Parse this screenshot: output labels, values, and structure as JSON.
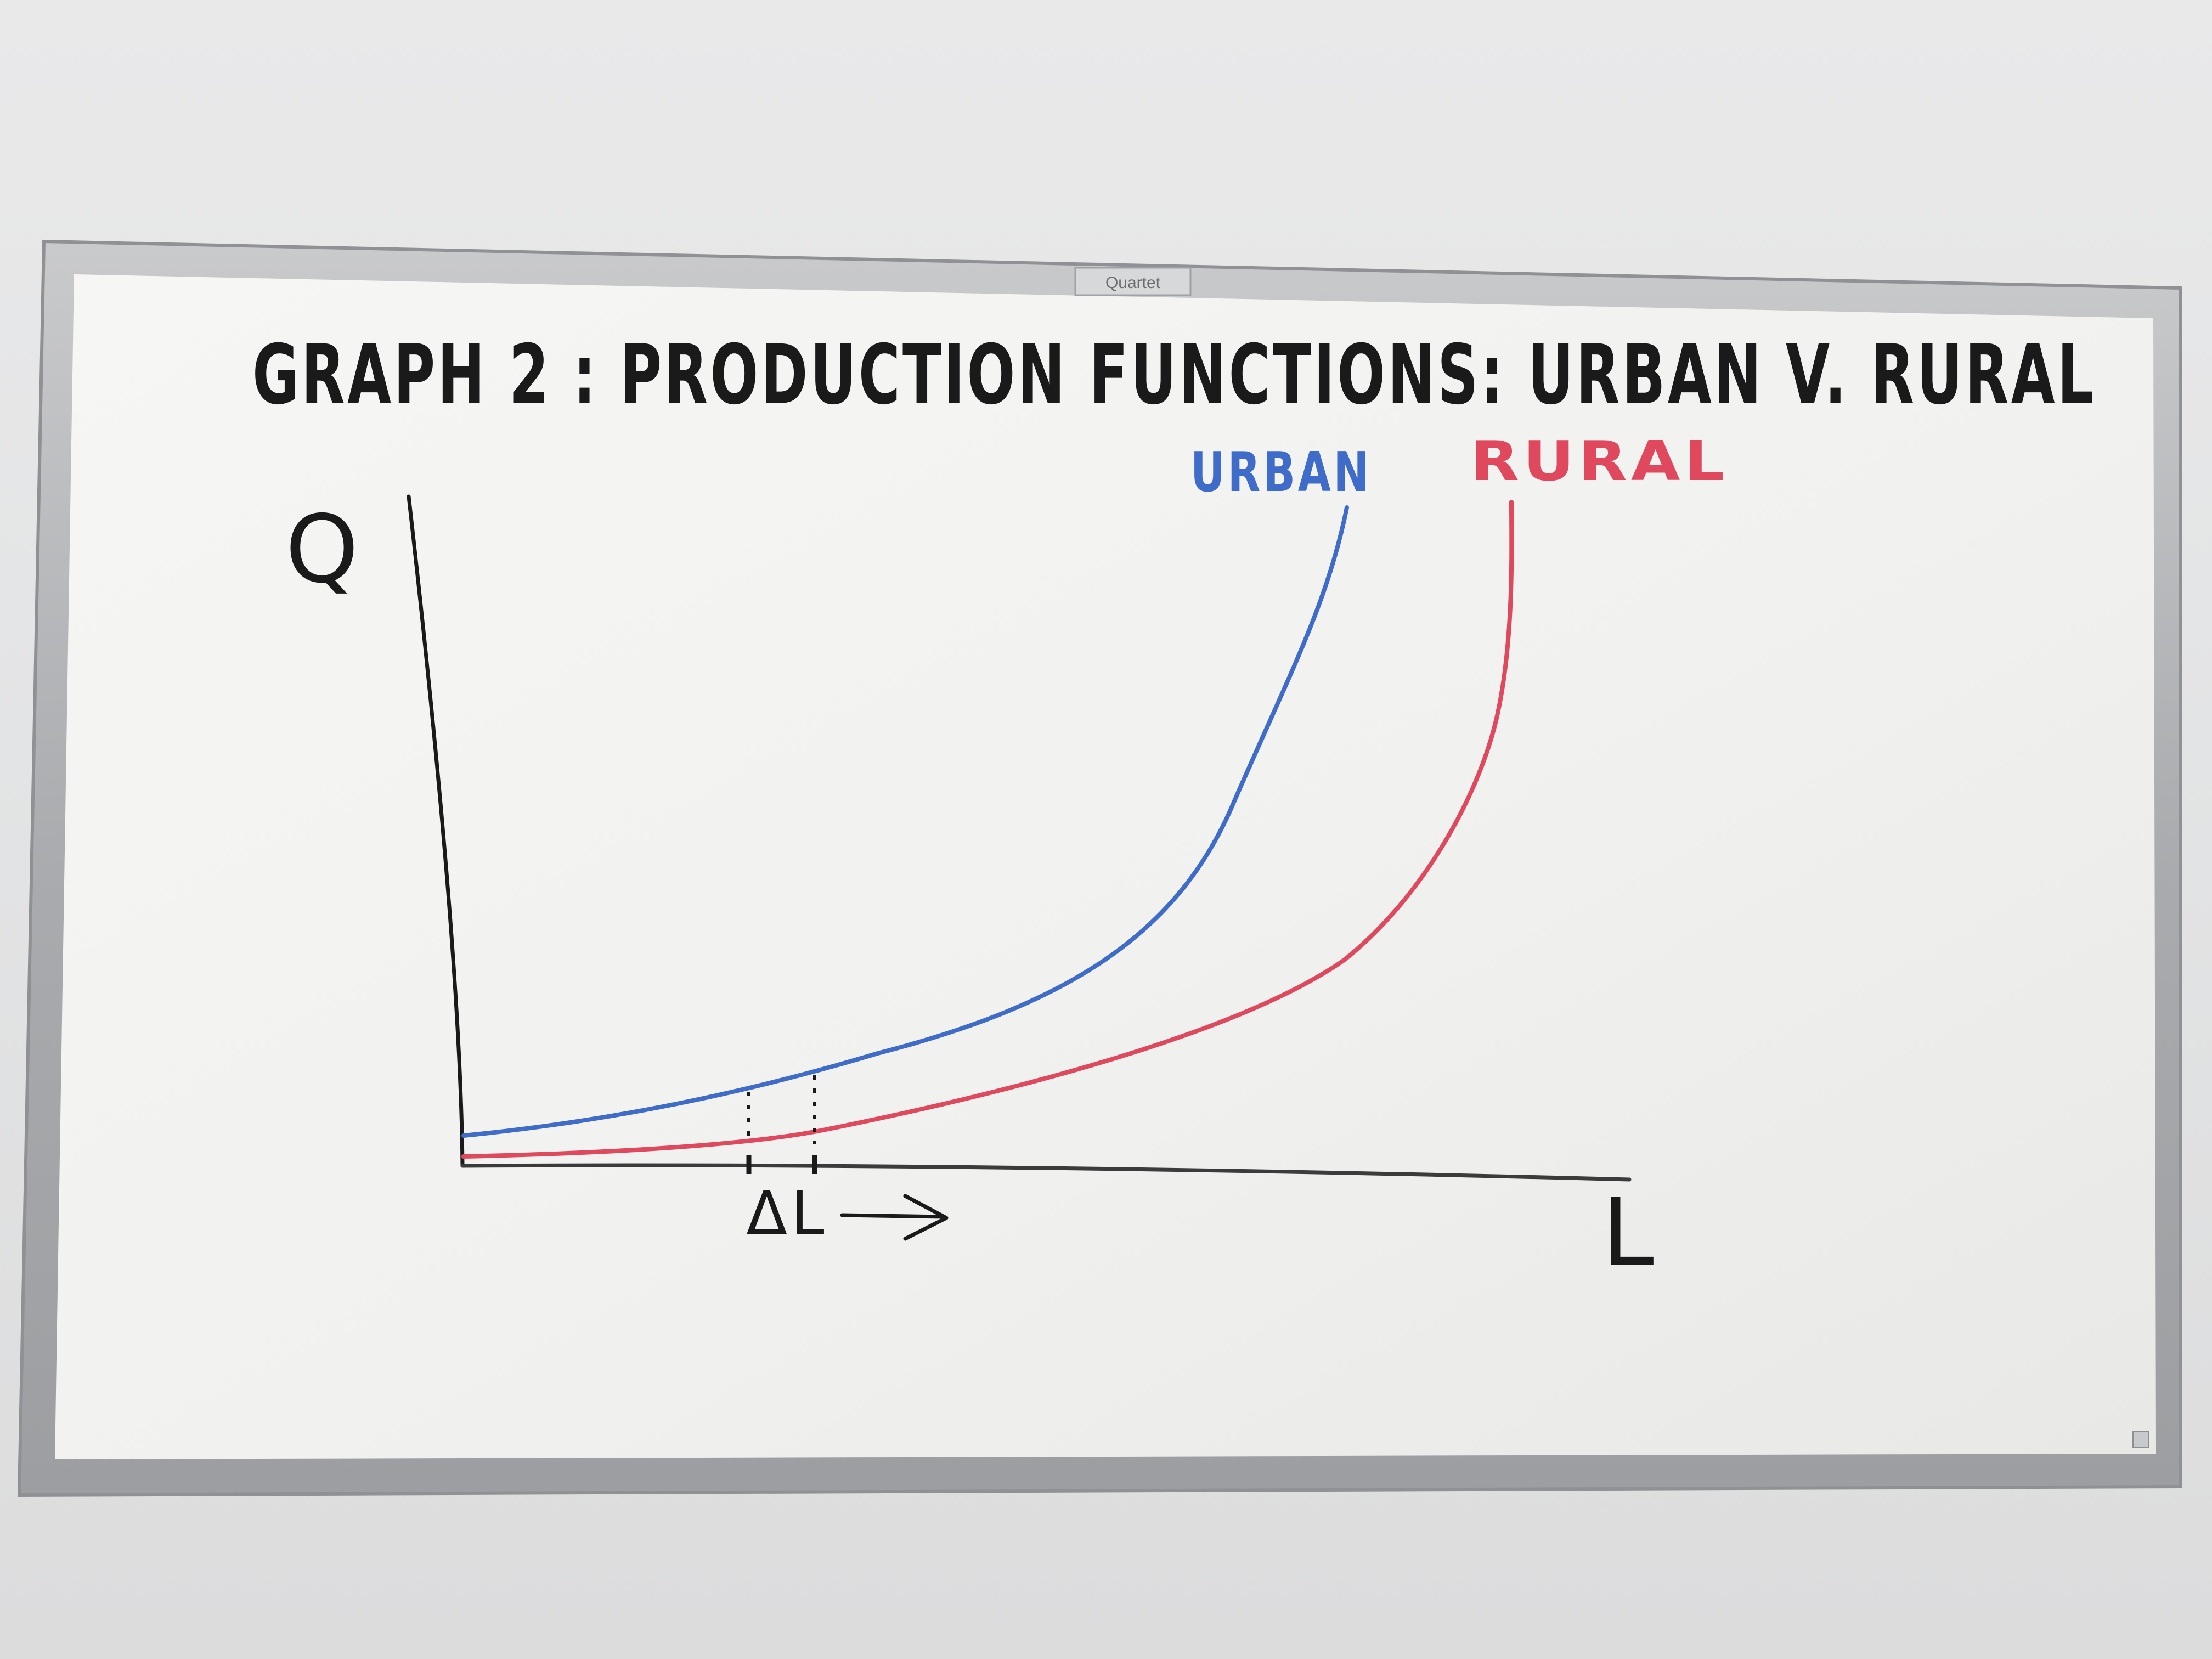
{
  "board": {
    "brand": "Quartet"
  },
  "drawing": {
    "title": "GRAPH 2 : PRODUCTION FUNCTIONS: URBAN V. RURAL",
    "y_axis_label": "Q",
    "x_axis_label": "L",
    "delta_label": "ΔL",
    "arrow": "→",
    "curves": [
      {
        "name": "URBAN",
        "color": "#3f6cc9"
      },
      {
        "name": "RURAL",
        "color": "#e0485e"
      }
    ]
  },
  "colors": {
    "ink_black": "#1a1a1a",
    "ink_blue": "#3f6cc9",
    "ink_red": "#e0485e",
    "frame": "#b7b8ba",
    "board": "#f3f3f1"
  }
}
